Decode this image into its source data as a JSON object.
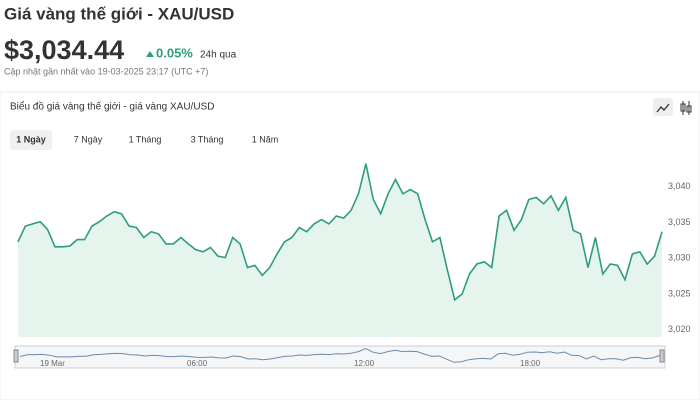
{
  "header": {
    "title": "Giá vàng thế giới - XAU/USD",
    "price": "$3,034.44",
    "change": "0.05%",
    "period": "24h qua",
    "updated": "Cập nhật gần nhất vào 19-03-2025 23:17 (UTC +7)"
  },
  "tabs": [
    "1 Ngày",
    "7 Ngày",
    "1 Tháng",
    "3 Tháng",
    "1 Năm"
  ],
  "navigator_labels": [
    "19 Mar",
    "06:00",
    "12:00",
    "18:00"
  ],
  "chart_data": {
    "type": "area",
    "title": "Biểu đồ giá vàng thế giới - giá vàng XAU/USD",
    "color": "#2e9e7a",
    "fill": "#e6f4ee",
    "values": [
      3032.3,
      3034.5,
      3034.8,
      3035.1,
      3034.0,
      3031.6,
      3031.6,
      3031.7,
      3032.6,
      3032.6,
      3034.5,
      3035.1,
      3035.9,
      3036.5,
      3036.2,
      3034.5,
      3034.3,
      3032.9,
      3033.7,
      3033.4,
      3032.0,
      3032.0,
      3032.9,
      3032.0,
      3031.2,
      3030.9,
      3031.5,
      3030.3,
      3030.1,
      3032.9,
      3032.0,
      3028.7,
      3029.0,
      3027.6,
      3028.7,
      3030.6,
      3032.3,
      3032.9,
      3034.3,
      3033.7,
      3034.8,
      3035.4,
      3034.8,
      3035.9,
      3035.6,
      3036.7,
      3039.0,
      3043.2,
      3038.2,
      3036.2,
      3039.0,
      3041.0,
      3039.0,
      3039.6,
      3039.0,
      3035.4,
      3032.3,
      3032.9,
      3028.4,
      3024.2,
      3025.0,
      3027.8,
      3029.2,
      3029.5,
      3028.7,
      3035.9,
      3036.7,
      3033.9,
      3035.4,
      3038.2,
      3038.5,
      3037.6,
      3038.7,
      3036.7,
      3038.5,
      3033.9,
      3033.4,
      3028.7,
      3032.9,
      3027.8,
      3029.2,
      3029.0,
      3027.0,
      3030.6,
      3030.9,
      3029.2,
      3030.3,
      3033.7
    ],
    "ylim": [
      3019,
      3044
    ],
    "yticks": [
      {
        "value": 3020,
        "label": "3,020"
      },
      {
        "value": 3025,
        "label": "3,025"
      },
      {
        "value": 3030,
        "label": "3,030"
      },
      {
        "value": 3035,
        "label": "3,035"
      },
      {
        "value": 3040,
        "label": "3,040"
      }
    ],
    "grid": false
  }
}
